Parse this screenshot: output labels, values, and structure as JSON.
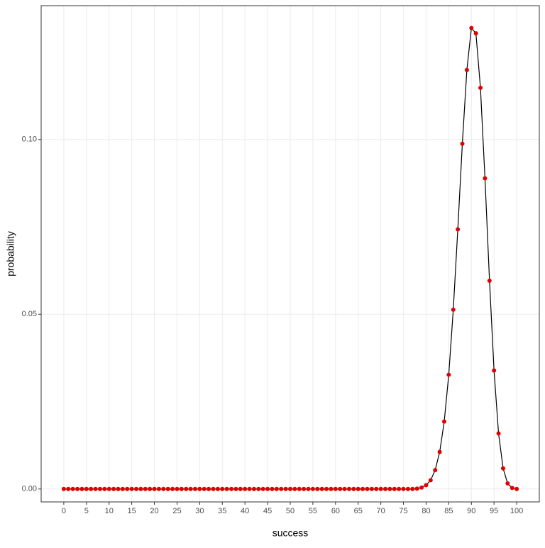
{
  "chart_data": {
    "type": "line",
    "x_label": "success",
    "y_label": "probability",
    "x": [
      0,
      1,
      2,
      3,
      4,
      5,
      6,
      7,
      8,
      9,
      10,
      11,
      12,
      13,
      14,
      15,
      16,
      17,
      18,
      19,
      20,
      21,
      22,
      23,
      24,
      25,
      26,
      27,
      28,
      29,
      30,
      31,
      32,
      33,
      34,
      35,
      36,
      37,
      38,
      39,
      40,
      41,
      42,
      43,
      44,
      45,
      46,
      47,
      48,
      49,
      50,
      51,
      52,
      53,
      54,
      55,
      56,
      57,
      58,
      59,
      60,
      61,
      62,
      63,
      64,
      65,
      66,
      67,
      68,
      69,
      70,
      71,
      72,
      73,
      74,
      75,
      76,
      77,
      78,
      79,
      80,
      81,
      82,
      83,
      84,
      85,
      86,
      87,
      88,
      89,
      90,
      91,
      92,
      93,
      94,
      95,
      96,
      97,
      98,
      99,
      100
    ],
    "series": [
      {
        "line_color": "#000000",
        "color": "#e00000",
        "values": [
          0,
          0,
          0,
          0,
          0,
          0,
          0,
          0,
          0,
          0,
          0,
          0,
          0,
          0,
          0,
          0,
          0,
          0,
          0,
          0,
          0,
          0,
          0,
          0,
          0,
          0,
          0,
          0,
          0,
          0,
          0,
          0,
          0,
          0,
          0,
          0,
          0,
          0,
          0,
          0,
          0,
          0,
          0,
          0,
          0,
          0,
          0,
          0,
          0,
          0,
          0,
          0,
          0,
          0,
          0,
          0,
          0,
          0,
          0,
          0,
          0,
          0,
          0,
          0,
          0,
          0,
          0,
          0,
          0,
          0,
          0,
          0,
          0,
          0,
          0,
          0,
          0,
          0,
          0.0001,
          0.0004,
          0.0011,
          0.0025,
          0.0054,
          0.0106,
          0.0193,
          0.0327,
          0.0513,
          0.0743,
          0.0988,
          0.1199,
          0.1319,
          0.1304,
          0.1148,
          0.0889,
          0.0596,
          0.0339,
          0.0159,
          0.0059,
          0.0016,
          0.0003,
          0
        ]
      }
    ],
    "xlim": [
      -5,
      105
    ],
    "ylim": [
      -0.0037,
      0.1383
    ],
    "xticks": [
      0,
      5,
      10,
      15,
      20,
      25,
      30,
      35,
      40,
      45,
      50,
      55,
      60,
      65,
      70,
      75,
      80,
      85,
      90,
      95,
      100
    ],
    "yticks": [
      {
        "value": 0,
        "label": "0.00"
      },
      {
        "value": 0.05,
        "label": "0.05"
      },
      {
        "value": 0.1,
        "label": "0.10"
      }
    ],
    "grid": true
  }
}
